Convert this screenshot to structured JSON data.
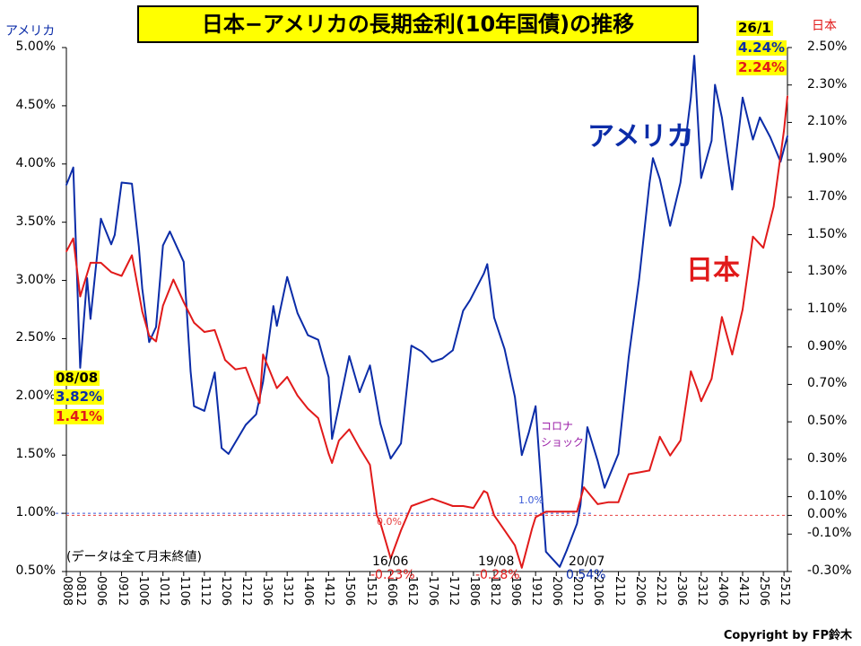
{
  "title": "日本−アメリカの長期金利(10年国債)の推移",
  "left_axis_label": "アメリカ",
  "right_axis_label": "日本",
  "series_labels": {
    "us": "アメリカ",
    "jp": "日本"
  },
  "colors": {
    "us": "#0b2ca8",
    "jp": "#e11a1a",
    "ref_us": "#3a5ad8",
    "ref_jp": "#e84040",
    "corona": "#9b1fa8"
  },
  "start_box": {
    "date": "08/08",
    "us": "3.82%",
    "jp": "1.41%"
  },
  "end_box": {
    "date": "26/1",
    "us": "4.24%",
    "jp": "2.24%"
  },
  "annotations": {
    "corona": "コロナ\nショック",
    "note": "(データは全て月末終値)",
    "ref_us": "1.0%",
    "ref_jp": "0.0%",
    "low1_date": "16/06",
    "low1_val": "-0.23%",
    "low2_date": "19/08",
    "low2_val": "-0.28%",
    "low3_date": "20/07",
    "low3_val": "0.54%"
  },
  "copyright": "Copyright by FP鈴木",
  "chart_data": {
    "type": "line",
    "x_range": [
      "2008-08",
      "2026-01"
    ],
    "x_tick_labels": [
      "0808",
      "0812",
      "0906",
      "0912",
      "1006",
      "1012",
      "1106",
      "1112",
      "1206",
      "1212",
      "1306",
      "1312",
      "1406",
      "1412",
      "1506",
      "1512",
      "1606",
      "1612",
      "1706",
      "1712",
      "1806",
      "1812",
      "1906",
      "1912",
      "2006",
      "2012",
      "2106",
      "2112",
      "2206",
      "2212",
      "2306",
      "2312",
      "2406",
      "2412",
      "2506",
      "2512"
    ],
    "y_left": {
      "label": "アメリカ",
      "range": [
        0.5,
        5.0
      ],
      "ticks": [
        "0.50%",
        "1.00%",
        "1.50%",
        "2.00%",
        "2.50%",
        "3.00%",
        "3.50%",
        "4.00%",
        "4.50%",
        "5.00%"
      ]
    },
    "y_right": {
      "label": "日本",
      "range": [
        -0.3,
        2.5
      ],
      "ticks": [
        "-0.30%",
        "-0.10%",
        "0.00%",
        "0.10%",
        "0.30%",
        "0.50%",
        "0.70%",
        "0.90%",
        "1.10%",
        "1.30%",
        "1.50%",
        "1.70%",
        "1.90%",
        "2.10%",
        "2.30%",
        "2.50%"
      ]
    },
    "series": [
      {
        "name": "アメリカ",
        "axis": "left",
        "points": [
          [
            "2008-08",
            3.82
          ],
          [
            "2008-10",
            3.97
          ],
          [
            "2008-12",
            2.25
          ],
          [
            "2009-02",
            3.02
          ],
          [
            "2009-03",
            2.67
          ],
          [
            "2009-06",
            3.53
          ],
          [
            "2009-09",
            3.31
          ],
          [
            "2009-10",
            3.39
          ],
          [
            "2009-12",
            3.84
          ],
          [
            "2010-03",
            3.83
          ],
          [
            "2010-05",
            3.29
          ],
          [
            "2010-06",
            2.93
          ],
          [
            "2010-08",
            2.47
          ],
          [
            "2010-10",
            2.6
          ],
          [
            "2010-12",
            3.3
          ],
          [
            "2011-02",
            3.42
          ],
          [
            "2011-04",
            3.29
          ],
          [
            "2011-06",
            3.16
          ],
          [
            "2011-08",
            2.22
          ],
          [
            "2011-09",
            1.92
          ],
          [
            "2011-12",
            1.88
          ],
          [
            "2012-03",
            2.21
          ],
          [
            "2012-05",
            1.56
          ],
          [
            "2012-07",
            1.51
          ],
          [
            "2012-12",
            1.76
          ],
          [
            "2013-03",
            1.85
          ],
          [
            "2013-05",
            2.13
          ],
          [
            "2013-08",
            2.78
          ],
          [
            "2013-09",
            2.61
          ],
          [
            "2013-12",
            3.03
          ],
          [
            "2014-03",
            2.72
          ],
          [
            "2014-06",
            2.53
          ],
          [
            "2014-09",
            2.49
          ],
          [
            "2014-12",
            2.17
          ],
          [
            "2015-01",
            1.64
          ],
          [
            "2015-03",
            1.92
          ],
          [
            "2015-06",
            2.35
          ],
          [
            "2015-09",
            2.04
          ],
          [
            "2015-12",
            2.27
          ],
          [
            "2016-03",
            1.77
          ],
          [
            "2016-06",
            1.47
          ],
          [
            "2016-09",
            1.6
          ],
          [
            "2016-12",
            2.44
          ],
          [
            "2017-03",
            2.39
          ],
          [
            "2017-06",
            2.3
          ],
          [
            "2017-09",
            2.33
          ],
          [
            "2017-12",
            2.4
          ],
          [
            "2018-03",
            2.74
          ],
          [
            "2018-05",
            2.83
          ],
          [
            "2018-09",
            3.06
          ],
          [
            "2018-10",
            3.14
          ],
          [
            "2018-12",
            2.68
          ],
          [
            "2019-03",
            2.41
          ],
          [
            "2019-06",
            2.0
          ],
          [
            "2019-08",
            1.5
          ],
          [
            "2019-10",
            1.69
          ],
          [
            "2019-12",
            1.92
          ],
          [
            "2020-03",
            0.67
          ],
          [
            "2020-07",
            0.54
          ],
          [
            "2020-09",
            0.68
          ],
          [
            "2020-12",
            0.91
          ],
          [
            "2021-01",
            1.07
          ],
          [
            "2021-03",
            1.74
          ],
          [
            "2021-06",
            1.45
          ],
          [
            "2021-08",
            1.22
          ],
          [
            "2021-12",
            1.51
          ],
          [
            "2022-03",
            2.34
          ],
          [
            "2022-06",
            3.01
          ],
          [
            "2022-09",
            3.83
          ],
          [
            "2022-10",
            4.05
          ],
          [
            "2022-12",
            3.87
          ],
          [
            "2023-03",
            3.47
          ],
          [
            "2023-06",
            3.84
          ],
          [
            "2023-09",
            4.57
          ],
          [
            "2023-10",
            4.93
          ],
          [
            "2023-12",
            3.88
          ],
          [
            "2024-03",
            4.2
          ],
          [
            "2024-04",
            4.68
          ],
          [
            "2024-06",
            4.4
          ],
          [
            "2024-09",
            3.78
          ],
          [
            "2024-12",
            4.57
          ],
          [
            "2025-03",
            4.21
          ],
          [
            "2025-05",
            4.4
          ],
          [
            "2025-08",
            4.23
          ],
          [
            "2025-11",
            4.02
          ],
          [
            "2026-01",
            4.24
          ]
        ]
      },
      {
        "name": "日本",
        "axis": "right",
        "points": [
          [
            "2008-08",
            1.41
          ],
          [
            "2008-10",
            1.48
          ],
          [
            "2008-12",
            1.17
          ],
          [
            "2009-03",
            1.35
          ],
          [
            "2009-06",
            1.35
          ],
          [
            "2009-09",
            1.3
          ],
          [
            "2009-12",
            1.28
          ],
          [
            "2010-03",
            1.39
          ],
          [
            "2010-06",
            1.09
          ],
          [
            "2010-08",
            0.96
          ],
          [
            "2010-10",
            0.93
          ],
          [
            "2010-12",
            1.12
          ],
          [
            "2011-03",
            1.26
          ],
          [
            "2011-06",
            1.14
          ],
          [
            "2011-09",
            1.03
          ],
          [
            "2011-12",
            0.98
          ],
          [
            "2012-03",
            0.99
          ],
          [
            "2012-06",
            0.83
          ],
          [
            "2012-09",
            0.78
          ],
          [
            "2012-12",
            0.79
          ],
          [
            "2013-04",
            0.6
          ],
          [
            "2013-05",
            0.86
          ],
          [
            "2013-09",
            0.68
          ],
          [
            "2013-12",
            0.74
          ],
          [
            "2014-03",
            0.64
          ],
          [
            "2014-06",
            0.57
          ],
          [
            "2014-09",
            0.52
          ],
          [
            "2014-12",
            0.33
          ],
          [
            "2015-01",
            0.28
          ],
          [
            "2015-03",
            0.4
          ],
          [
            "2015-06",
            0.46
          ],
          [
            "2015-09",
            0.36
          ],
          [
            "2015-12",
            0.27
          ],
          [
            "2016-02",
            0.0
          ],
          [
            "2016-03",
            -0.04
          ],
          [
            "2016-06",
            -0.23
          ],
          [
            "2016-09",
            -0.08
          ],
          [
            "2016-12",
            0.05
          ],
          [
            "2017-03",
            0.07
          ],
          [
            "2017-06",
            0.09
          ],
          [
            "2017-09",
            0.07
          ],
          [
            "2017-12",
            0.05
          ],
          [
            "2018-03",
            0.05
          ],
          [
            "2018-06",
            0.04
          ],
          [
            "2018-09",
            0.13
          ],
          [
            "2018-10",
            0.12
          ],
          [
            "2018-12",
            0.0
          ],
          [
            "2019-03",
            -0.08
          ],
          [
            "2019-06",
            -0.16
          ],
          [
            "2019-08",
            -0.28
          ],
          [
            "2019-11",
            -0.07
          ],
          [
            "2019-12",
            -0.01
          ],
          [
            "2020-03",
            0.02
          ],
          [
            "2020-07",
            0.02
          ],
          [
            "2020-12",
            0.02
          ],
          [
            "2021-02",
            0.15
          ],
          [
            "2021-06",
            0.06
          ],
          [
            "2021-09",
            0.07
          ],
          [
            "2021-12",
            0.07
          ],
          [
            "2022-03",
            0.22
          ],
          [
            "2022-06",
            0.23
          ],
          [
            "2022-09",
            0.24
          ],
          [
            "2022-12",
            0.42
          ],
          [
            "2023-03",
            0.32
          ],
          [
            "2023-06",
            0.4
          ],
          [
            "2023-09",
            0.77
          ],
          [
            "2023-11",
            0.67
          ],
          [
            "2023-12",
            0.61
          ],
          [
            "2024-03",
            0.73
          ],
          [
            "2024-06",
            1.06
          ],
          [
            "2024-09",
            0.86
          ],
          [
            "2024-12",
            1.1
          ],
          [
            "2025-03",
            1.49
          ],
          [
            "2025-06",
            1.43
          ],
          [
            "2025-09",
            1.65
          ],
          [
            "2025-12",
            2.06
          ],
          [
            "2026-01",
            2.24
          ]
        ]
      }
    ],
    "reference_lines": [
      {
        "axis": "left",
        "value": 1.0,
        "label": "1.0%"
      },
      {
        "axis": "right",
        "value": 0.0,
        "label": "0.0%"
      }
    ],
    "grid": false,
    "legend": "inline labels"
  }
}
